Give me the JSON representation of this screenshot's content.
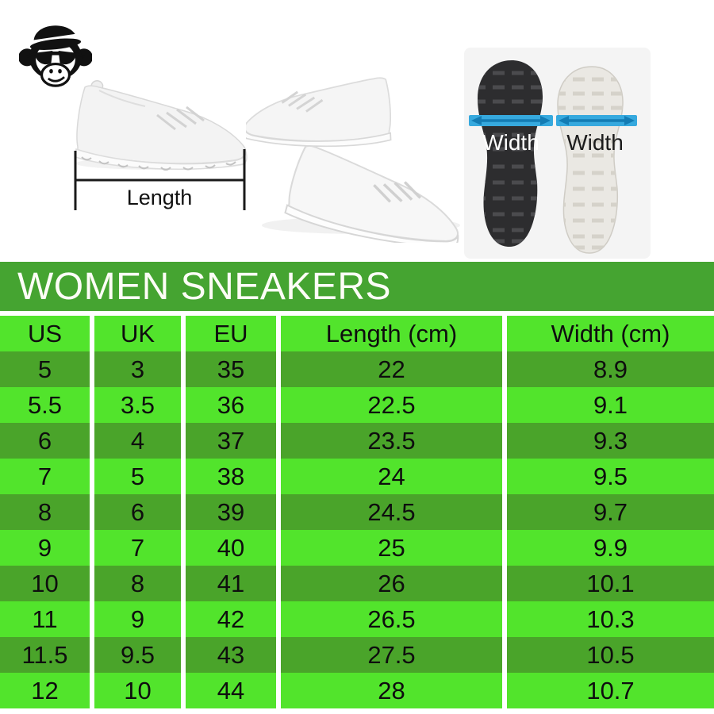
{
  "title": "WOMEN SNEAKERS",
  "photo": {
    "length_label": "Length",
    "width_label_left": "Width",
    "width_label_right": "Width"
  },
  "icons": {
    "logo": "monkey-with-bowler-hat-and-sunglasses",
    "length_measure": "horizontal-measurement-bracket",
    "width_measure": "blue-double-arrow"
  },
  "colors": {
    "title_green": "#45a431",
    "row_light": "#52e42c",
    "row_dark": "#4aa42a",
    "arrow_blue": "#36a9de",
    "arrow_dark_blue": "#137cb4",
    "sole_black": "#2d2d2f",
    "sole_white": "#eae8e3"
  },
  "table": {
    "headers": [
      "US",
      "UK",
      "EU",
      "Length (cm)",
      "Width (cm)"
    ],
    "rows": [
      [
        "5",
        "3",
        "35",
        "22",
        "8.9"
      ],
      [
        "5.5",
        "3.5",
        "36",
        "22.5",
        "9.1"
      ],
      [
        "6",
        "4",
        "37",
        "23.5",
        "9.3"
      ],
      [
        "7",
        "5",
        "38",
        "24",
        "9.5"
      ],
      [
        "8",
        "6",
        "39",
        "24.5",
        "9.7"
      ],
      [
        "9",
        "7",
        "40",
        "25",
        "9.9"
      ],
      [
        "10",
        "8",
        "41",
        "26",
        "10.1"
      ],
      [
        "11",
        "9",
        "42",
        "26.5",
        "10.3"
      ],
      [
        "11.5",
        "9.5",
        "43",
        "27.5",
        "10.5"
      ],
      [
        "12",
        "10",
        "44",
        "28",
        "10.7"
      ]
    ]
  },
  "chart_data": {
    "type": "table",
    "title": "WOMEN SNEAKERS",
    "columns": [
      "US",
      "UK",
      "EU",
      "Length (cm)",
      "Width (cm)"
    ],
    "rows": [
      [
        5,
        3,
        35,
        22,
        8.9
      ],
      [
        5.5,
        3.5,
        36,
        22.5,
        9.1
      ],
      [
        6,
        4,
        37,
        23.5,
        9.3
      ],
      [
        7,
        5,
        38,
        24,
        9.5
      ],
      [
        8,
        6,
        39,
        24.5,
        9.7
      ],
      [
        9,
        7,
        40,
        25,
        9.9
      ],
      [
        10,
        8,
        41,
        26,
        10.1
      ],
      [
        11,
        9,
        42,
        26.5,
        10.3
      ],
      [
        11.5,
        9.5,
        43,
        27.5,
        10.5
      ],
      [
        12,
        10,
        44,
        28,
        10.7
      ]
    ]
  }
}
